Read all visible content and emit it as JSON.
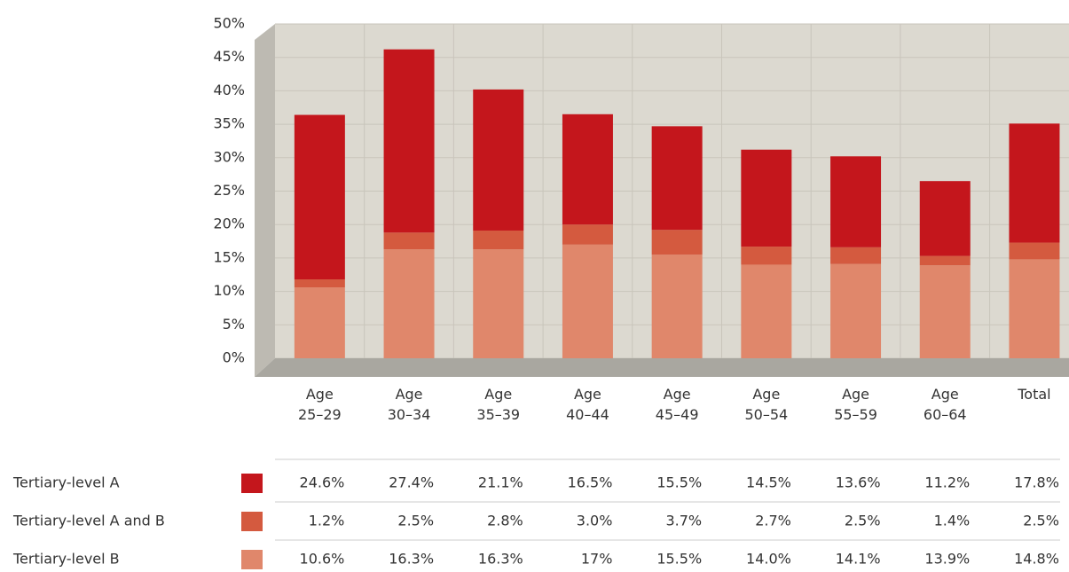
{
  "chart_data": {
    "type": "bar",
    "stacked": true,
    "categories": [
      "Age 25–29",
      "Age 30–34",
      "Age 35–39",
      "Age 40–44",
      "Age 45–49",
      "Age 50–54",
      "Age 55–59",
      "Age 60–64",
      "Total"
    ],
    "series": [
      {
        "name": "Tertiary-level A",
        "color": "#c4161c",
        "values": [
          24.6,
          27.4,
          21.1,
          16.5,
          15.5,
          14.5,
          13.6,
          11.2,
          17.8
        ],
        "value_labels": [
          "24.6%",
          "27.4%",
          "21.1%",
          "16.5%",
          "15.5%",
          "14.5%",
          "13.6%",
          "11.2%",
          "17.8%"
        ]
      },
      {
        "name": "Tertiary-level A and B",
        "color": "#d45a3f",
        "values": [
          1.2,
          2.5,
          2.8,
          3.0,
          3.7,
          2.7,
          2.5,
          1.4,
          2.5
        ],
        "value_labels": [
          "1.2%",
          "2.5%",
          "2.8%",
          "3.0%",
          "3.7%",
          "2.7%",
          "2.5%",
          "1.4%",
          "2.5%"
        ]
      },
      {
        "name": "Tertiary-level B",
        "color": "#e0876b",
        "values": [
          10.6,
          16.3,
          16.3,
          17,
          15.5,
          14.0,
          14.1,
          13.9,
          14.8
        ],
        "value_labels": [
          "10.6%",
          "16.3%",
          "16.3%",
          "17%",
          "15.5%",
          "14.0%",
          "14.1%",
          "13.9%",
          "14.8%"
        ]
      }
    ],
    "ylim": [
      0,
      50
    ],
    "yticks": [
      {
        "value": 0,
        "label": "0%"
      },
      {
        "value": 5,
        "label": "5%"
      },
      {
        "value": 10,
        "label": "10%"
      },
      {
        "value": 15,
        "label": "15%"
      },
      {
        "value": 20,
        "label": "20%"
      },
      {
        "value": 25,
        "label": "25%"
      },
      {
        "value": 30,
        "label": "30%"
      },
      {
        "value": 35,
        "label": "35%"
      },
      {
        "value": 40,
        "label": "40%"
      },
      {
        "value": 45,
        "label": "45%"
      },
      {
        "value": 50,
        "label": "50%"
      }
    ],
    "grid": true
  }
}
